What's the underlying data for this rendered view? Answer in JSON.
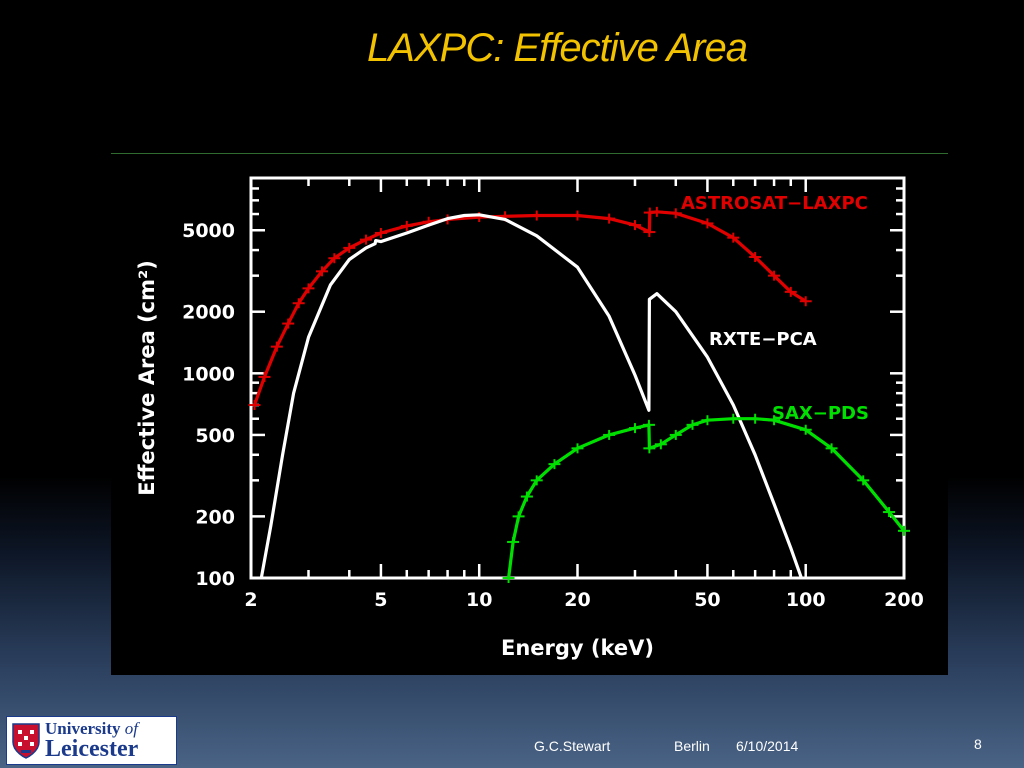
{
  "slide": {
    "title": "LAXPC: Effective Area",
    "footer": {
      "author": "G.C.Stewart",
      "location": "Berlin",
      "date": "6/10/2014",
      "page_number": "8"
    },
    "logo": {
      "line1_prefix": "University ",
      "line1_of": "of",
      "line2": "Leicester"
    }
  },
  "colors": {
    "title": "#f2c200",
    "astrosat": "#e00000",
    "rxte": "#ffffff",
    "sax": "#00e000",
    "axes": "#ffffff"
  },
  "chart_data": {
    "type": "line",
    "title": "",
    "xlabel": "Energy (keV)",
    "ylabel": "Effective Area (cm²)",
    "xscale": "log",
    "yscale": "log",
    "xlim": [
      2,
      200
    ],
    "ylim": [
      100,
      9000
    ],
    "x_ticks": [
      {
        "value": 2,
        "label": "2"
      },
      {
        "value": 5,
        "label": "5"
      },
      {
        "value": 10,
        "label": "10"
      },
      {
        "value": 20,
        "label": "20"
      },
      {
        "value": 50,
        "label": "50"
      },
      {
        "value": 100,
        "label": "100"
      },
      {
        "value": 200,
        "label": "200"
      }
    ],
    "y_ticks": [
      {
        "value": 100,
        "label": "100"
      },
      {
        "value": 200,
        "label": "200"
      },
      {
        "value": 500,
        "label": "500"
      },
      {
        "value": 1000,
        "label": "1000"
      },
      {
        "value": 2000,
        "label": "2000"
      },
      {
        "value": 5000,
        "label": "5000"
      }
    ],
    "grid": false,
    "series": [
      {
        "name": "ASTROSAT−LAXPC",
        "color": "#e00000",
        "error_bar_markers": true,
        "points": [
          [
            2.05,
            700
          ],
          [
            2.2,
            960
          ],
          [
            2.4,
            1350
          ],
          [
            2.6,
            1750
          ],
          [
            2.8,
            2200
          ],
          [
            3.0,
            2600
          ],
          [
            3.3,
            3150
          ],
          [
            3.6,
            3650
          ],
          [
            4.0,
            4100
          ],
          [
            4.5,
            4500
          ],
          [
            5.0,
            4850
          ],
          [
            6.0,
            5250
          ],
          [
            7.0,
            5500
          ],
          [
            8.0,
            5650
          ],
          [
            10,
            5800
          ],
          [
            12,
            5850
          ],
          [
            15,
            5900
          ],
          [
            20,
            5900
          ],
          [
            25,
            5700
          ],
          [
            30,
            5300
          ],
          [
            33.2,
            4900
          ],
          [
            33.3,
            6100
          ],
          [
            35,
            6150
          ],
          [
            40,
            6050
          ],
          [
            50,
            5400
          ],
          [
            60,
            4600
          ],
          [
            70,
            3700
          ],
          [
            80,
            3000
          ],
          [
            90,
            2500
          ],
          [
            100,
            2250
          ]
        ]
      },
      {
        "name": "RXTE−PCA",
        "color": "#ffffff",
        "error_bar_markers": false,
        "points": [
          [
            2.15,
            100
          ],
          [
            2.3,
            180
          ],
          [
            2.5,
            400
          ],
          [
            2.7,
            800
          ],
          [
            3.0,
            1500
          ],
          [
            3.5,
            2700
          ],
          [
            4.0,
            3600
          ],
          [
            4.5,
            4100
          ],
          [
            4.8,
            4300
          ],
          [
            4.82,
            4450
          ],
          [
            5.0,
            4400
          ],
          [
            6.0,
            4850
          ],
          [
            7.0,
            5300
          ],
          [
            8.0,
            5700
          ],
          [
            9.0,
            5900
          ],
          [
            10,
            5950
          ],
          [
            12,
            5650
          ],
          [
            15,
            4700
          ],
          [
            20,
            3300
          ],
          [
            25,
            1900
          ],
          [
            30,
            980
          ],
          [
            33.1,
            660
          ],
          [
            33.2,
            2300
          ],
          [
            35,
            2450
          ],
          [
            40,
            2000
          ],
          [
            50,
            1200
          ],
          [
            60,
            700
          ],
          [
            70,
            400
          ],
          [
            80,
            230
          ],
          [
            90,
            140
          ],
          [
            97,
            100
          ]
        ]
      },
      {
        "name": "SAX−PDS",
        "color": "#00e000",
        "error_bar_markers": true,
        "points": [
          [
            12.3,
            100
          ],
          [
            12.7,
            150
          ],
          [
            13.2,
            200
          ],
          [
            14,
            250
          ],
          [
            15,
            300
          ],
          [
            17,
            360
          ],
          [
            20,
            430
          ],
          [
            25,
            500
          ],
          [
            30,
            540
          ],
          [
            33.1,
            560
          ],
          [
            33.2,
            430
          ],
          [
            36,
            450
          ],
          [
            40,
            500
          ],
          [
            45,
            560
          ],
          [
            50,
            590
          ],
          [
            60,
            600
          ],
          [
            70,
            600
          ],
          [
            80,
            590
          ],
          [
            100,
            530
          ],
          [
            120,
            430
          ],
          [
            150,
            300
          ],
          [
            180,
            210
          ],
          [
            200,
            170
          ]
        ]
      }
    ]
  }
}
